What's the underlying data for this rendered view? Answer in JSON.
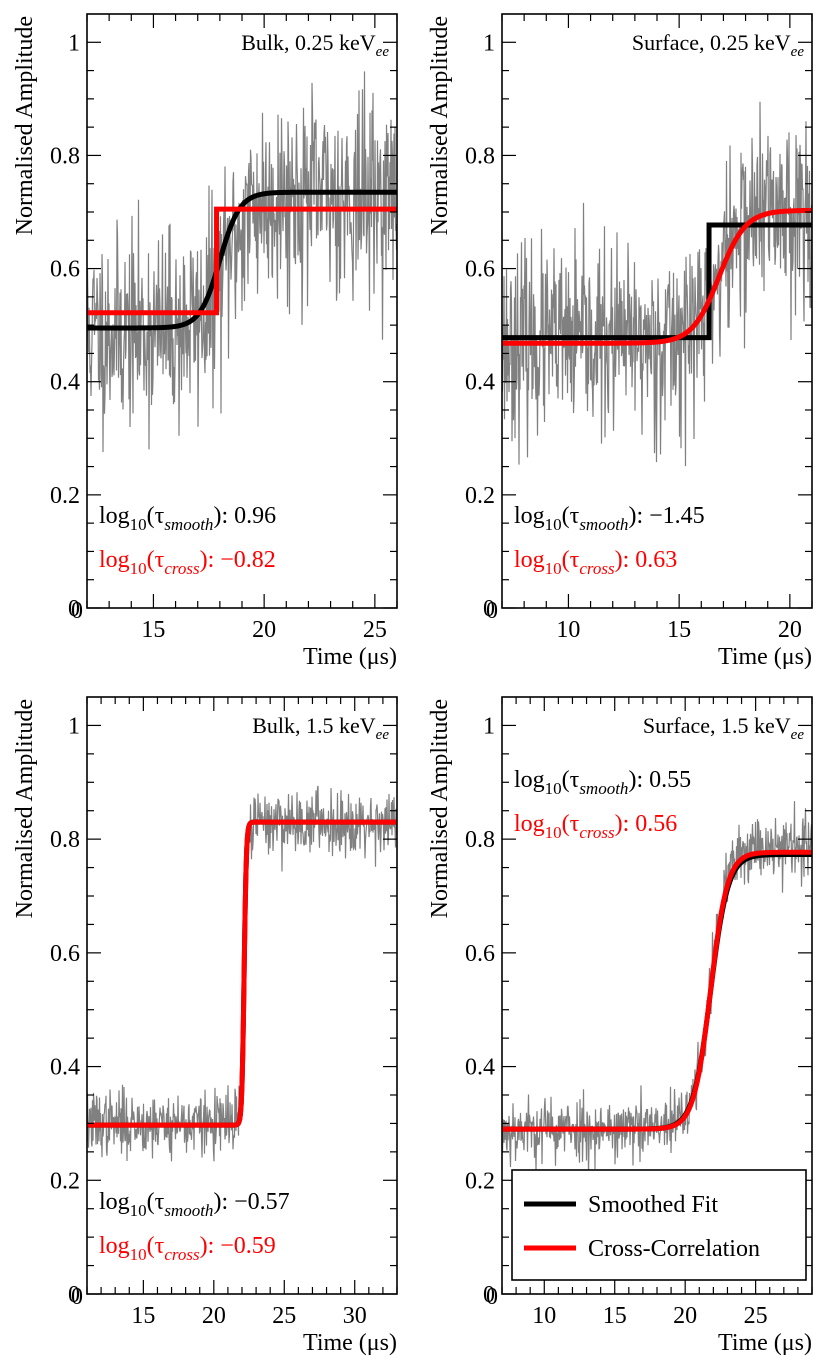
{
  "colors": {
    "noise": "#808080",
    "smoothed": "#000000",
    "cross": "#ff0000"
  },
  "legend": {
    "smoothed": "Smoothed Fit",
    "cross": "Cross-Correlation"
  },
  "annotation_parts": {
    "log": "log",
    "base": "10",
    "tau": "τ",
    "smooth_sub": "smooth",
    "cross_sub": "cross"
  },
  "chart_data": [
    {
      "type": "line",
      "title": "Bulk, 0.25 keV",
      "title_sub": "ee",
      "xlabel": "Time (μs)",
      "ylabel": "Normalised Amplitude",
      "xlim": [
        12,
        26
      ],
      "ylim": [
        0,
        1.05
      ],
      "xticks": [
        15,
        20,
        25
      ],
      "yticks": [
        0,
        0.2,
        0.4,
        0.6,
        0.8,
        1
      ],
      "ytick_labels": [
        "0",
        "0.2",
        "0.4",
        "0.6",
        "0.8",
        "1"
      ],
      "annotations": {
        "smooth_value": ": 0.96",
        "cross_value": ": −0.82"
      },
      "noise": {
        "pre": 0.49,
        "post": 0.73,
        "t0": 18.3,
        "rise": 0.55,
        "sigma": 0.085,
        "seed": 11
      },
      "series": [
        {
          "name": "Smoothed Fit",
          "kind": "sigmoid",
          "pre": 0.495,
          "post": 0.735,
          "t0": 18.0,
          "width": 0.45
        },
        {
          "name": "Cross-Correlation",
          "kind": "step",
          "pre": 0.522,
          "post": 0.705,
          "t0": 17.85
        }
      ]
    },
    {
      "type": "line",
      "title": "Surface, 0.25 keV",
      "title_sub": "ee",
      "xlabel": "Time (μs)",
      "ylabel": "Normalised Amplitude",
      "xlim": [
        7,
        21
      ],
      "ylim": [
        0,
        1.05
      ],
      "xticks": [
        10,
        15,
        20
      ],
      "yticks": [
        0,
        0.2,
        0.4,
        0.6,
        0.8,
        1
      ],
      "ytick_labels": [
        "0",
        "0.2",
        "0.4",
        "0.6",
        "0.8",
        "1"
      ],
      "annotations": {
        "smooth_value": ": −1.45",
        "cross_value": ": 0.63"
      },
      "noise": {
        "pre": 0.47,
        "post": 0.71,
        "t0": 16.8,
        "rise": 0.6,
        "sigma": 0.08,
        "seed": 23
      },
      "series": [
        {
          "name": "Smoothed Fit",
          "kind": "step",
          "pre": 0.478,
          "post": 0.677,
          "t0": 16.35
        },
        {
          "name": "Cross-Correlation",
          "kind": "sigmoid",
          "pre": 0.468,
          "post": 0.703,
          "t0": 16.8,
          "width": 0.6
        }
      ]
    },
    {
      "type": "line",
      "title": "Bulk, 1.5 keV",
      "title_sub": "ee",
      "xlabel": "Time (μs)",
      "ylabel": "Normalised Amplitude",
      "xlim": [
        11,
        33
      ],
      "ylim": [
        0,
        1.05
      ],
      "xticks": [
        15,
        20,
        25,
        30
      ],
      "yticks": [
        0,
        0.2,
        0.4,
        0.6,
        0.8,
        1
      ],
      "ytick_labels": [
        "0",
        "0.2",
        "0.4",
        "0.6",
        "0.8",
        "1"
      ],
      "annotations": {
        "smooth_value": ": −0.57",
        "cross_value": ": −0.59"
      },
      "noise": {
        "pre": 0.3,
        "post": 0.83,
        "t0": 22.15,
        "rise": 0.12,
        "sigma": 0.028,
        "seed": 37
      },
      "series": [
        {
          "name": "Smoothed Fit",
          "kind": "sigmoid",
          "pre": 0.297,
          "post": 0.83,
          "t0": 22.15,
          "width": 0.08
        },
        {
          "name": "Cross-Correlation",
          "kind": "sigmoid",
          "pre": 0.297,
          "post": 0.83,
          "t0": 22.15,
          "width": 0.08
        }
      ]
    },
    {
      "type": "line",
      "title": "Surface, 1.5 keV",
      "title_sub": "ee",
      "xlabel": "Time (μs)",
      "ylabel": "Normalised Amplitude",
      "xlim": [
        7,
        29
      ],
      "ylim": [
        0,
        1.05
      ],
      "xticks": [
        10,
        15,
        20,
        25
      ],
      "yticks": [
        0,
        0.2,
        0.4,
        0.6,
        0.8,
        1
      ],
      "ytick_labels": [
        "0",
        "0.2",
        "0.4",
        "0.6",
        "0.8",
        "1"
      ],
      "annotations": {
        "smooth_value": ": 0.55",
        "cross_value": ": 0.56"
      },
      "noise": {
        "pre": 0.29,
        "post": 0.79,
        "t0": 21.8,
        "rise": 0.62,
        "sigma": 0.028,
        "seed": 53
      },
      "series": [
        {
          "name": "Smoothed Fit",
          "kind": "sigmoid",
          "pre": 0.29,
          "post": 0.773,
          "t0": 21.8,
          "width": 0.62
        },
        {
          "name": "Cross-Correlation",
          "kind": "sigmoid",
          "pre": 0.29,
          "post": 0.777,
          "t0": 21.8,
          "width": 0.6
        }
      ],
      "has_legend": true
    }
  ]
}
